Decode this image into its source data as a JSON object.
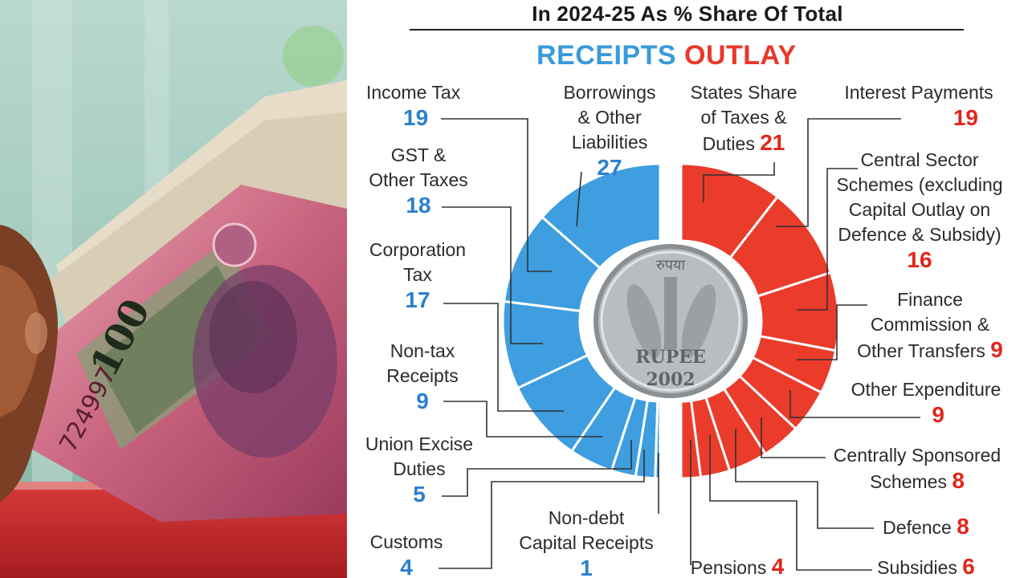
{
  "heading": "In 2024-25 As % Share Of Total",
  "receipts_title": "RECEIPTS",
  "outlay_title": "OUTLAY",
  "coin_text": {
    "top": "रुपया",
    "bottom": "RUPEE",
    "year": "2002"
  },
  "banknote_text": {
    "denomination": "100",
    "serial": "724997"
  },
  "colors": {
    "receipts": "#3e9ee0",
    "outlay": "#ea3b2b",
    "receipts_number": "#2b7fcf",
    "outlay_number": "#e2261b"
  },
  "chart_data": [
    {
      "type": "pie",
      "title": "RECEIPTS",
      "unit": "% share of total",
      "categories": [
        "Borrowings & Other Liabilities",
        "Income Tax",
        "GST & Other Taxes",
        "Corporation Tax",
        "Non-tax Receipts",
        "Union Excise Duties",
        "Customs",
        "Non-debt Capital Receipts"
      ],
      "values": [
        27,
        19,
        18,
        17,
        9,
        5,
        4,
        1
      ]
    },
    {
      "type": "pie",
      "title": "OUTLAY",
      "unit": "% share of total",
      "categories": [
        "States Share of Taxes & Duties",
        "Interest Payments",
        "Central Sector Schemes (excluding Capital Outlay on Defence & Subsidy)",
        "Finance Commission & Other Transfers",
        "Other Expenditure",
        "Centrally Sponsored Schemes",
        "Defence",
        "Subsidies",
        "Pensions"
      ],
      "values": [
        21,
        19,
        16,
        9,
        9,
        8,
        8,
        6,
        4
      ]
    }
  ],
  "receipts_labels": [
    {
      "lines": [
        "Income Tax"
      ],
      "value": "19"
    },
    {
      "lines": [
        "Borrowings",
        "& Other",
        "Liabilities"
      ],
      "value": "27"
    },
    {
      "lines": [
        "GST &",
        "Other Taxes"
      ],
      "value": "18"
    },
    {
      "lines": [
        "Corporation",
        "Tax"
      ],
      "value": "17"
    },
    {
      "lines": [
        "Non-tax",
        "Receipts"
      ],
      "value": "9"
    },
    {
      "lines": [
        "Union Excise",
        "Duties"
      ],
      "value": "5"
    },
    {
      "lines": [
        "Customs"
      ],
      "value": "4"
    },
    {
      "lines": [
        "Non-debt",
        "Capital Receipts"
      ],
      "value": "1"
    }
  ],
  "outlay_labels": [
    {
      "lines": [
        "States Share",
        "of Taxes &"
      ],
      "last": "Duties",
      "value": "21"
    },
    {
      "lines": [
        "Interest Payments"
      ],
      "value": "19"
    },
    {
      "lines": [
        "Central Sector",
        "Schemes (excluding",
        "Capital Outlay on",
        "Defence & Subsidy)"
      ],
      "value": "16"
    },
    {
      "lines": [
        "Finance",
        "Commission &"
      ],
      "last": "Other Transfers",
      "value": "9"
    },
    {
      "lines": [
        "Other Expenditure"
      ],
      "value": "9"
    },
    {
      "lines": [
        "Centrally Sponsored"
      ],
      "last": "Schemes",
      "value": "8"
    },
    {
      "lines": [],
      "last": "Defence",
      "value": "8"
    },
    {
      "lines": [],
      "last": "Subsidies",
      "value": "6"
    },
    {
      "lines": [],
      "last": "Pensions",
      "value": "4"
    }
  ]
}
